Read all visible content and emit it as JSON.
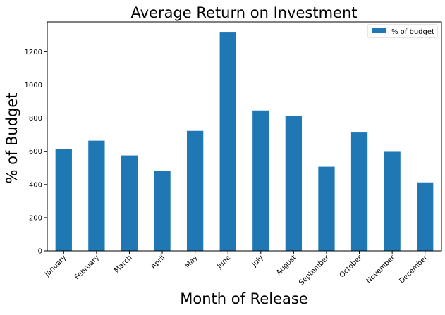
{
  "chart_data": {
    "type": "bar",
    "title": "Average Return on Investment",
    "xlabel": "Month of Release",
    "ylabel": "% of Budget",
    "categories": [
      "January",
      "February",
      "March",
      "April",
      "May",
      "June",
      "July",
      "August",
      "September",
      "October",
      "November",
      "December"
    ],
    "series": [
      {
        "name": "% of budget",
        "color": "#1f77b4",
        "values": [
          613,
          664,
          575,
          482,
          723,
          1316,
          846,
          812,
          507,
          713,
          601,
          413
        ]
      }
    ],
    "ylim": [
      0,
      1380
    ],
    "yticks": [
      0,
      200,
      400,
      600,
      800,
      1000,
      1200
    ],
    "grid": false,
    "legend_position": "top-right"
  }
}
